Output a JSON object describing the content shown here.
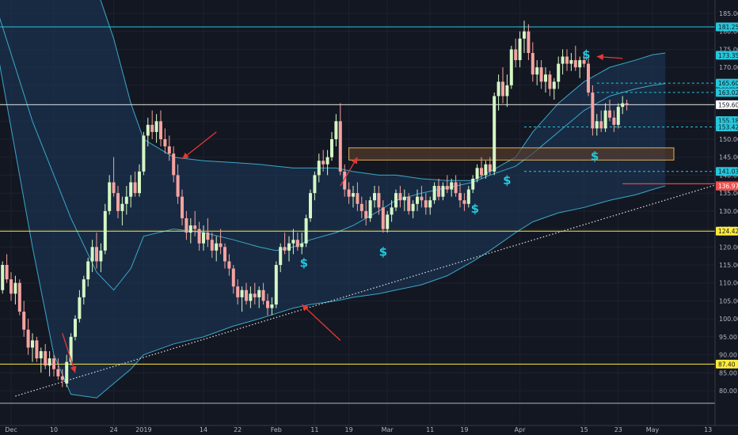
{
  "chart_data": {
    "type": "candlestick",
    "ylim": [
      75,
      188
    ],
    "y_ticks": [
      80,
      85,
      90,
      95,
      100,
      105,
      110,
      115,
      120,
      125,
      130,
      135,
      140,
      145,
      150,
      155,
      160,
      165,
      170,
      175,
      180,
      185
    ],
    "x_ticks": [
      "Dec",
      "10",
      "24",
      "2019",
      "14",
      "22",
      "Feb",
      "11",
      "19",
      "Mar",
      "11",
      "19",
      "Apr",
      "15",
      "23",
      "May",
      "13"
    ],
    "x_tick_days": [
      0,
      10,
      24,
      31,
      45,
      53,
      62,
      71,
      79,
      88,
      98,
      106,
      119,
      134,
      142,
      150,
      163
    ],
    "x_range_days": [
      -3,
      171
    ],
    "price_labels": [
      {
        "value": 181.25,
        "text": "181.25",
        "color": "#26c6da",
        "text_color": "#131722"
      },
      {
        "value": 173.35,
        "text": "173.35",
        "color": "#26c6da",
        "text_color": "#131722"
      },
      {
        "value": 165.6,
        "text": "165.60",
        "color": "#26c6da",
        "text_color": "#131722"
      },
      {
        "value": 163.02,
        "text": "163.02",
        "color": "#26c6da",
        "text_color": "#131722"
      },
      {
        "value": 159.6,
        "text": "159.60",
        "color": "#ffffff",
        "text_color": "#131722"
      },
      {
        "value": 155.18,
        "text": "155.18",
        "color": "#26c6da",
        "text_color": "#131722"
      },
      {
        "value": 153.42,
        "text": "153.42",
        "color": "#26c6da",
        "text_color": "#131722"
      },
      {
        "value": 141.03,
        "text": "141.03",
        "color": "#26c6da",
        "text_color": "#131722"
      },
      {
        "value": 137.01,
        "text": "137.01",
        "color": "#26c6da",
        "text_color": "#131722"
      },
      {
        "value": 136.97,
        "text": "136.97",
        "color": "#ef5350",
        "text_color": "#ffffff"
      },
      {
        "value": 124.42,
        "text": "124.42",
        "color": "#ffeb3b",
        "text_color": "#131722"
      },
      {
        "value": 87.4,
        "text": "87.40",
        "color": "#ffeb3b",
        "text_color": "#131722"
      }
    ],
    "horizontal_lines": [
      {
        "value": 181.25,
        "color": "#26c6da",
        "style": "solid",
        "from_day": -3
      },
      {
        "value": 159.6,
        "color": "#e0e0e0",
        "style": "solid",
        "from_day": -3
      },
      {
        "value": 124.42,
        "color": "#ffeb3b",
        "style": "solid",
        "from_day": -3
      },
      {
        "value": 87.4,
        "color": "#ffeb3b",
        "style": "solid",
        "from_day": -3
      },
      {
        "value": 165.6,
        "color": "#26c6da",
        "style": "dashed",
        "from_day": 137
      },
      {
        "value": 163.02,
        "color": "#26c6da",
        "style": "dashed",
        "from_day": 137
      },
      {
        "value": 153.42,
        "color": "#26c6da",
        "style": "dashed",
        "from_day": 120
      },
      {
        "value": 141.03,
        "color": "#26c6da",
        "style": "dashed",
        "from_day": 120
      }
    ],
    "bottom_line": 76.5,
    "zone": {
      "day_start": 79,
      "day_end": 155,
      "low": 144.2,
      "high": 147.6,
      "fill": "#5a3d2b",
      "border": "#e0b050"
    },
    "trendline": {
      "from": {
        "day": 1,
        "value": 78.5
      },
      "to": {
        "day": 171,
        "value": 139.5
      }
    },
    "red_segment": {
      "day_start": 143,
      "day_end": 171,
      "value": 137.6
    },
    "bollinger": {
      "days": [
        -3,
        5,
        10,
        14,
        20,
        24,
        28,
        31,
        38,
        45,
        52,
        58,
        62,
        66,
        70,
        76,
        80,
        86,
        90,
        96,
        102,
        108,
        112,
        118,
        122,
        128,
        134,
        140,
        146,
        150,
        153
      ],
      "upper": [
        193,
        193,
        193,
        193,
        192,
        178,
        160,
        150,
        145,
        144,
        143.5,
        143,
        142.5,
        142,
        142,
        142,
        141,
        140,
        140,
        139,
        138.5,
        138.5,
        141,
        145,
        152,
        160,
        166,
        170,
        172,
        173.5,
        174
      ],
      "middle": [
        185,
        155,
        140,
        128,
        113,
        108,
        114,
        123,
        125,
        124,
        122,
        120,
        119,
        120,
        122,
        124,
        126,
        130,
        133,
        135,
        136.5,
        138,
        140,
        142.5,
        146,
        152,
        158,
        162,
        164,
        165,
        165.5
      ],
      "lower": [
        173,
        120,
        90,
        79,
        78,
        82,
        86,
        90,
        93,
        95,
        98,
        100,
        101.5,
        103,
        104,
        105,
        106,
        107,
        108,
        109.5,
        112,
        116,
        119,
        124,
        127,
        129.5,
        131,
        133,
        134.5,
        136,
        137
      ]
    },
    "candles": [
      [
        -3,
        110,
        114,
        106,
        108
      ],
      [
        -2,
        108,
        116,
        107,
        115
      ],
      [
        -1,
        115,
        118,
        110,
        111
      ],
      [
        0,
        111,
        113,
        105,
        107
      ],
      [
        1,
        107,
        112,
        104,
        110
      ],
      [
        2,
        110,
        111,
        101,
        102
      ],
      [
        3,
        102,
        105,
        95,
        97
      ],
      [
        4,
        97,
        100,
        90,
        92
      ],
      [
        5,
        92,
        96,
        88,
        94
      ],
      [
        6,
        94,
        95,
        88,
        89
      ],
      [
        7,
        89,
        92,
        85,
        91
      ],
      [
        8,
        91,
        93,
        86,
        87
      ],
      [
        9,
        87,
        91,
        84,
        89
      ],
      [
        10,
        89,
        90,
        84,
        86
      ],
      [
        11,
        86,
        89,
        83,
        84
      ],
      [
        12,
        84,
        86,
        81,
        83
      ],
      [
        13,
        82,
        90,
        81,
        88
      ],
      [
        14,
        88,
        96,
        87,
        95
      ],
      [
        15,
        95,
        101,
        94,
        100
      ],
      [
        16,
        100,
        108,
        99,
        106
      ],
      [
        17,
        106,
        112,
        104,
        111
      ],
      [
        18,
        111,
        117,
        109,
        116
      ],
      [
        19,
        116,
        122,
        113,
        120
      ],
      [
        20,
        120,
        124,
        114,
        116
      ],
      [
        21,
        116,
        121,
        113,
        119
      ],
      [
        22,
        119,
        132,
        118,
        130
      ],
      [
        23,
        130,
        140,
        129,
        138
      ],
      [
        24,
        138,
        145,
        134,
        135
      ],
      [
        25,
        135,
        137,
        128,
        130
      ],
      [
        26,
        130,
        134,
        126,
        132
      ],
      [
        27,
        132,
        137,
        129,
        134
      ],
      [
        28,
        134,
        140,
        131,
        138
      ],
      [
        29,
        138,
        141,
        134,
        135
      ],
      [
        30,
        135,
        143,
        134,
        141
      ],
      [
        31,
        141,
        152,
        140,
        151
      ],
      [
        32,
        151,
        156,
        148,
        154
      ],
      [
        33,
        154,
        158,
        150,
        152
      ],
      [
        34,
        152,
        157,
        149,
        155
      ],
      [
        35,
        155,
        158,
        148,
        150
      ],
      [
        36,
        150,
        153,
        146,
        148
      ],
      [
        37,
        148,
        151,
        144,
        146
      ],
      [
        38,
        146,
        148,
        138,
        140
      ],
      [
        39,
        140,
        143,
        132,
        134
      ],
      [
        40,
        134,
        136,
        126,
        128
      ],
      [
        41,
        128,
        130,
        122,
        124
      ],
      [
        42,
        124,
        128,
        121,
        126
      ],
      [
        43,
        126,
        130,
        123,
        125
      ],
      [
        44,
        125,
        127,
        119,
        121
      ],
      [
        45,
        121,
        126,
        119,
        124
      ],
      [
        46,
        124,
        128,
        120,
        122
      ],
      [
        47,
        122,
        124,
        117,
        119
      ],
      [
        48,
        119,
        123,
        116,
        121
      ],
      [
        49,
        121,
        125,
        118,
        120
      ],
      [
        50,
        120,
        121,
        114,
        116
      ],
      [
        51,
        116,
        118,
        112,
        114
      ],
      [
        52,
        114,
        115,
        107,
        109
      ],
      [
        53,
        109,
        111,
        104,
        106
      ],
      [
        54,
        106,
        109,
        102,
        108
      ],
      [
        55,
        108,
        110,
        104,
        105
      ],
      [
        56,
        105,
        109,
        103,
        107
      ],
      [
        57,
        107,
        110,
        104,
        106
      ],
      [
        58,
        106,
        109,
        103,
        108
      ],
      [
        59,
        108,
        110,
        104,
        105
      ],
      [
        60,
        105,
        107,
        101,
        103
      ],
      [
        61,
        103,
        106,
        101,
        104
      ],
      [
        62,
        104,
        116,
        103,
        115
      ],
      [
        63,
        115,
        121,
        113,
        120
      ],
      [
        64,
        120,
        124,
        118,
        119
      ],
      [
        65,
        119,
        123,
        116,
        121
      ],
      [
        66,
        121,
        125,
        118,
        122
      ],
      [
        67,
        122,
        124,
        119,
        120
      ],
      [
        68,
        120,
        124,
        118,
        121
      ],
      [
        69,
        121,
        129,
        120,
        128
      ],
      [
        70,
        128,
        136,
        127,
        135
      ],
      [
        71,
        135,
        141,
        133,
        140
      ],
      [
        72,
        140,
        146,
        138,
        144
      ],
      [
        73,
        144,
        147,
        141,
        143
      ],
      [
        74,
        143,
        147,
        140,
        145
      ],
      [
        75,
        145,
        152,
        144,
        150
      ],
      [
        76,
        150,
        157,
        148,
        155
      ],
      [
        77,
        155,
        160,
        140,
        141
      ],
      [
        78,
        141,
        143,
        134,
        136
      ],
      [
        79,
        136,
        138,
        132,
        134
      ],
      [
        80,
        134,
        137,
        131,
        135
      ],
      [
        81,
        135,
        138,
        130,
        132
      ],
      [
        82,
        132,
        134,
        128,
        130
      ],
      [
        83,
        130,
        133,
        126,
        128
      ],
      [
        84,
        128,
        134,
        127,
        133
      ],
      [
        85,
        133,
        137,
        131,
        135
      ],
      [
        86,
        135,
        137,
        129,
        131
      ],
      [
        87,
        131,
        133,
        124,
        125
      ],
      [
        88,
        125,
        130,
        124,
        129
      ],
      [
        89,
        129,
        133,
        127,
        131
      ],
      [
        90,
        131,
        136,
        130,
        135
      ],
      [
        91,
        135,
        137,
        131,
        133
      ],
      [
        92,
        133,
        136,
        130,
        134
      ],
      [
        93,
        134,
        135,
        129,
        130
      ],
      [
        94,
        130,
        133,
        128,
        132
      ],
      [
        95,
        132,
        136,
        130,
        134
      ],
      [
        96,
        134,
        137,
        131,
        133
      ],
      [
        97,
        133,
        135,
        129,
        131
      ],
      [
        98,
        131,
        134,
        129,
        133
      ],
      [
        99,
        133,
        138,
        132,
        137
      ],
      [
        100,
        137,
        139,
        133,
        134
      ],
      [
        101,
        134,
        138,
        133,
        137
      ],
      [
        102,
        137,
        140,
        135,
        136
      ],
      [
        103,
        136,
        139,
        134,
        138
      ],
      [
        104,
        138,
        140,
        134,
        135
      ],
      [
        105,
        135,
        138,
        131,
        133
      ],
      [
        106,
        133,
        135,
        130,
        132
      ],
      [
        107,
        132,
        137,
        131,
        136
      ],
      [
        108,
        136,
        140,
        135,
        139
      ],
      [
        109,
        139,
        143,
        138,
        142
      ],
      [
        110,
        142,
        145,
        139,
        140
      ],
      [
        111,
        140,
        144,
        139,
        143
      ],
      [
        112,
        143,
        145,
        140,
        141
      ],
      [
        113,
        141,
        163,
        140,
        162
      ],
      [
        114,
        162,
        168,
        158,
        166
      ],
      [
        115,
        166,
        170,
        160,
        162
      ],
      [
        116,
        162,
        168,
        159,
        165
      ],
      [
        117,
        165,
        176,
        164,
        175
      ],
      [
        118,
        175,
        178,
        170,
        172
      ],
      [
        119,
        172,
        180,
        170,
        178
      ],
      [
        120,
        178,
        183,
        174,
        180
      ],
      [
        121,
        180,
        182,
        172,
        174
      ],
      [
        122,
        174,
        177,
        166,
        168
      ],
      [
        123,
        168,
        172,
        165,
        170
      ],
      [
        124,
        170,
        172,
        164,
        166
      ],
      [
        125,
        166,
        170,
        163,
        168
      ],
      [
        126,
        168,
        169,
        162,
        164
      ],
      [
        127,
        164,
        167,
        161,
        166
      ],
      [
        128,
        166,
        173,
        164,
        171
      ],
      [
        129,
        171,
        175,
        168,
        173
      ],
      [
        130,
        173,
        175,
        169,
        171
      ],
      [
        131,
        171,
        174,
        169,
        172
      ],
      [
        132,
        172,
        176,
        169,
        170
      ],
      [
        133,
        170,
        173,
        167,
        172
      ],
      [
        134,
        172,
        174,
        170,
        171
      ],
      [
        135,
        171,
        173,
        162,
        163
      ],
      [
        136,
        163,
        165,
        151,
        153
      ],
      [
        137,
        153,
        157,
        151,
        155
      ],
      [
        138,
        155,
        158,
        152,
        153
      ],
      [
        139,
        153,
        160,
        152,
        158
      ],
      [
        140,
        158,
        161,
        155,
        156
      ],
      [
        141,
        156,
        158,
        152,
        154
      ],
      [
        142,
        154,
        160,
        153,
        159
      ],
      [
        143,
        159,
        162,
        157,
        160
      ],
      [
        144,
        160,
        161,
        158,
        159.6
      ]
    ],
    "annotations": [
      {
        "text": "$",
        "day": 134.5,
        "value": 172.5,
        "color": "#26c6da"
      },
      {
        "text": "$",
        "day": 136.5,
        "value": 144.2,
        "color": "#26c6da"
      },
      {
        "text": "$",
        "day": 116,
        "value": 137.5,
        "color": "#26c6da"
      },
      {
        "text": "$",
        "day": 108.5,
        "value": 129.5,
        "color": "#26c6da"
      },
      {
        "text": "$",
        "day": 87,
        "value": 117.5,
        "color": "#26c6da"
      },
      {
        "text": "$",
        "day": 68.5,
        "value": 114.5,
        "color": "#26c6da"
      }
    ],
    "arrows": [
      {
        "from_day": 48,
        "from_value": 152,
        "to_day": 40,
        "to_value": 144.5
      },
      {
        "from_day": 77,
        "from_value": 137,
        "to_day": 81,
        "to_value": 145
      },
      {
        "from_day": 77,
        "from_value": 94,
        "to_day": 68,
        "to_value": 104
      },
      {
        "from_day": 12,
        "from_value": 96,
        "to_day": 15,
        "to_value": 85
      },
      {
        "from_day": 143,
        "from_value": 172.5,
        "to_day": 137,
        "to_value": 173
      }
    ]
  }
}
